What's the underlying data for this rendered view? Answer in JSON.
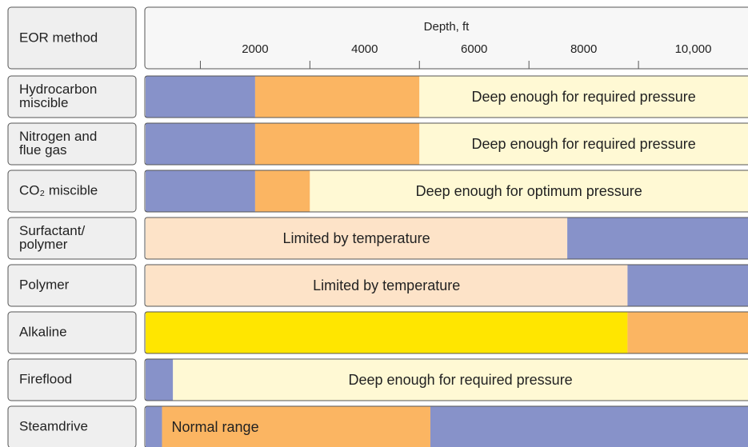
{
  "chart_data": {
    "type": "bar",
    "category_header": "EOR method",
    "x_label": "Depth, ft",
    "xlim": [
      0,
      11000
    ],
    "xticks": [
      2000,
      4000,
      6000,
      8000,
      {
        "value": 10000,
        "label": "10,000"
      }
    ],
    "minor_xticks": [
      1000,
      3000,
      5000,
      7000,
      9000
    ],
    "categories": [
      [
        "Hydrocarbon",
        "miscible"
      ],
      [
        "Nitrogen and",
        "flue gas"
      ],
      [
        "CO₂ miscible"
      ],
      [
        "Surfactant/",
        "polymer"
      ],
      [
        "Polymer"
      ],
      [
        "Alkaline"
      ],
      [
        "Fireflood"
      ],
      [
        "Steamdrive"
      ]
    ],
    "rows": [
      {
        "segments": [
          {
            "value": 2000,
            "color": "#8792c9"
          },
          {
            "value": 3000,
            "color": "#fbb562"
          },
          {
            "value": 6000,
            "color": "#fff9d4",
            "label": "Deep enough for required pressure"
          }
        ]
      },
      {
        "segments": [
          {
            "value": 2000,
            "color": "#8792c9"
          },
          {
            "value": 3000,
            "color": "#fbb562"
          },
          {
            "value": 6000,
            "color": "#fff9d4",
            "label": "Deep enough for required pressure"
          }
        ]
      },
      {
        "segments": [
          {
            "value": 2000,
            "color": "#8792c9"
          },
          {
            "value": 1000,
            "color": "#fbb562"
          },
          {
            "value": 8000,
            "color": "#fff9d4",
            "label": "Deep enough for optimum pressure"
          }
        ]
      },
      {
        "segments": [
          {
            "value": 7700,
            "color": "#fde3c8",
            "label": "Limited by temperature"
          },
          {
            "value": 3300,
            "color": "#8792c9"
          }
        ]
      },
      {
        "segments": [
          {
            "value": 8800,
            "color": "#fde3c8",
            "label": "Limited by temperature"
          },
          {
            "value": 2200,
            "color": "#8792c9"
          }
        ]
      },
      {
        "segments": [
          {
            "value": 8800,
            "color": "#ffe600"
          },
          {
            "value": 2200,
            "color": "#fbb562"
          }
        ]
      },
      {
        "segments": [
          {
            "value": 500,
            "color": "#8792c9"
          },
          {
            "value": 10500,
            "color": "#fff9d4",
            "label": "Deep enough for required pressure"
          }
        ]
      },
      {
        "segments": [
          {
            "value": 300,
            "color": "#8792c9"
          },
          {
            "value": 4900,
            "color": "#fbb562",
            "label": "Normal range",
            "label_anchor": "start"
          },
          {
            "value": 5800,
            "color": "#8792c9"
          }
        ]
      }
    ]
  }
}
